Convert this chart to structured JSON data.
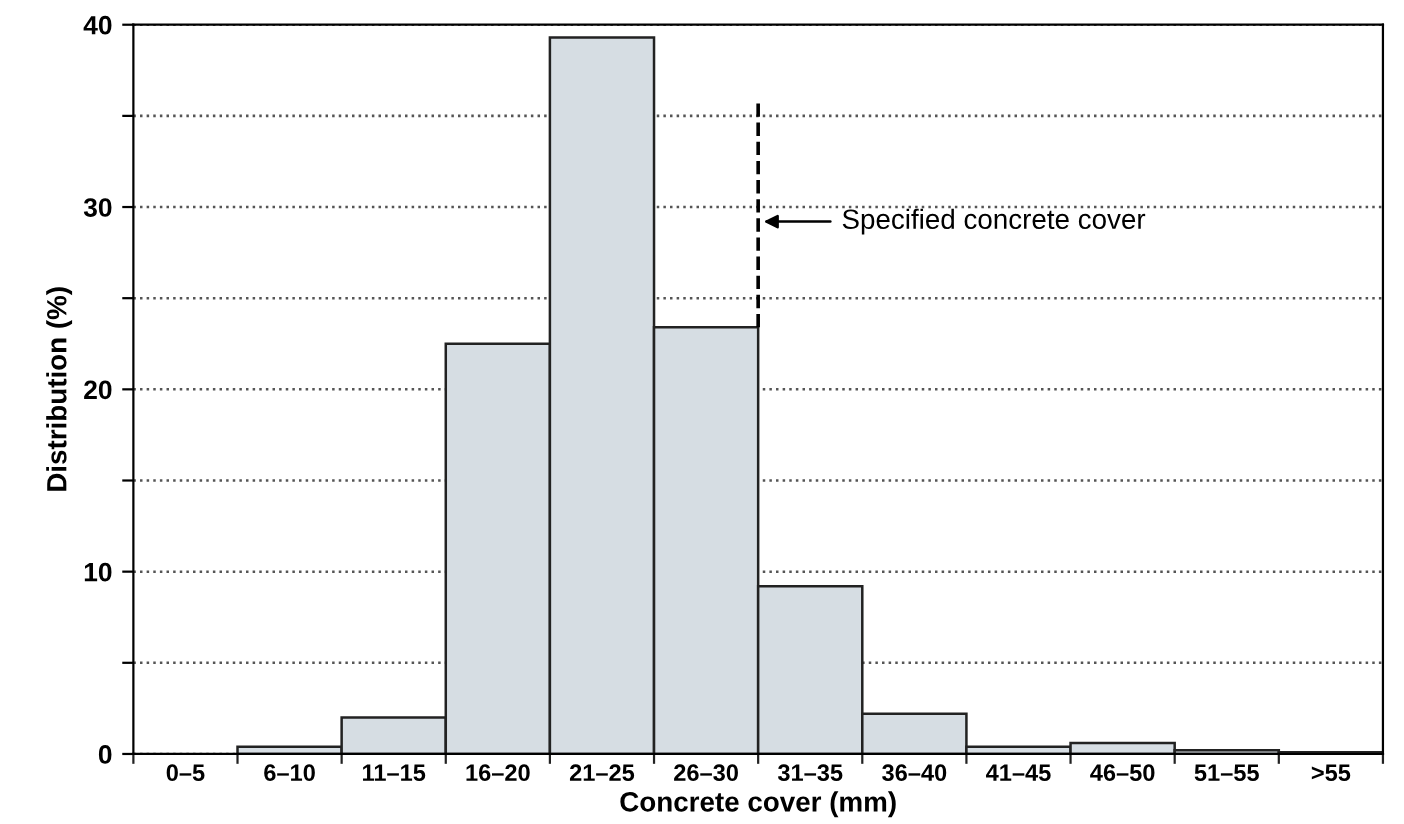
{
  "chart_data": {
    "type": "bar",
    "xlabel": "Concrete cover (mm)",
    "ylabel": "Distribution (%)",
    "categories": [
      "0–5",
      "6–10",
      "11–15",
      "16–20",
      "21–25",
      "26–30",
      "31–35",
      "36–40",
      "41–45",
      "46–50",
      "51–55",
      ">55"
    ],
    "values": [
      0,
      0.4,
      2.0,
      22.5,
      39.3,
      23.4,
      9.2,
      2.2,
      0.4,
      0.6,
      0.2,
      0.1
    ],
    "color": "#d6dde3",
    "ylim": [
      0,
      40
    ],
    "yticks": [
      0,
      {
        "value": 5,
        "label": null
      },
      10,
      {
        "value": 15,
        "label": null
      },
      20,
      {
        "value": 25,
        "label": null
      },
      30,
      {
        "value": 35,
        "label": null
      },
      40
    ],
    "grid": "y",
    "annotations": [
      "Specified concrete cover"
    ]
  }
}
